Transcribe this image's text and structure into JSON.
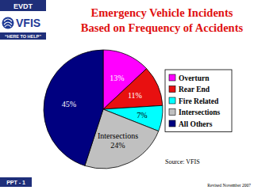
{
  "chart_data": {
    "type": "pie",
    "title": "Emergency Vehicle Incidents\nBased on Frequency of Accidents",
    "categories": [
      "Overturn",
      "Rear End",
      "Fire Related",
      "Intersections",
      "All Others"
    ],
    "values": [
      13,
      11,
      7,
      24,
      45
    ],
    "value_labels": [
      "13%",
      "11%",
      "7%",
      "24%",
      "45%"
    ],
    "colors": [
      "#ff00ff",
      "#e81010",
      "#00ffff",
      "#c0c0c0",
      "#000080"
    ],
    "annotations": [
      "Intersections"
    ],
    "data_labels": true,
    "legend": "right"
  },
  "slide": {
    "badge": "EVDT",
    "logo": "VFIS",
    "tagline": "“HERE TO HELP”",
    "source": "Source: VFIS",
    "page": "PPT - 1",
    "revised": "Revised November 2007"
  }
}
